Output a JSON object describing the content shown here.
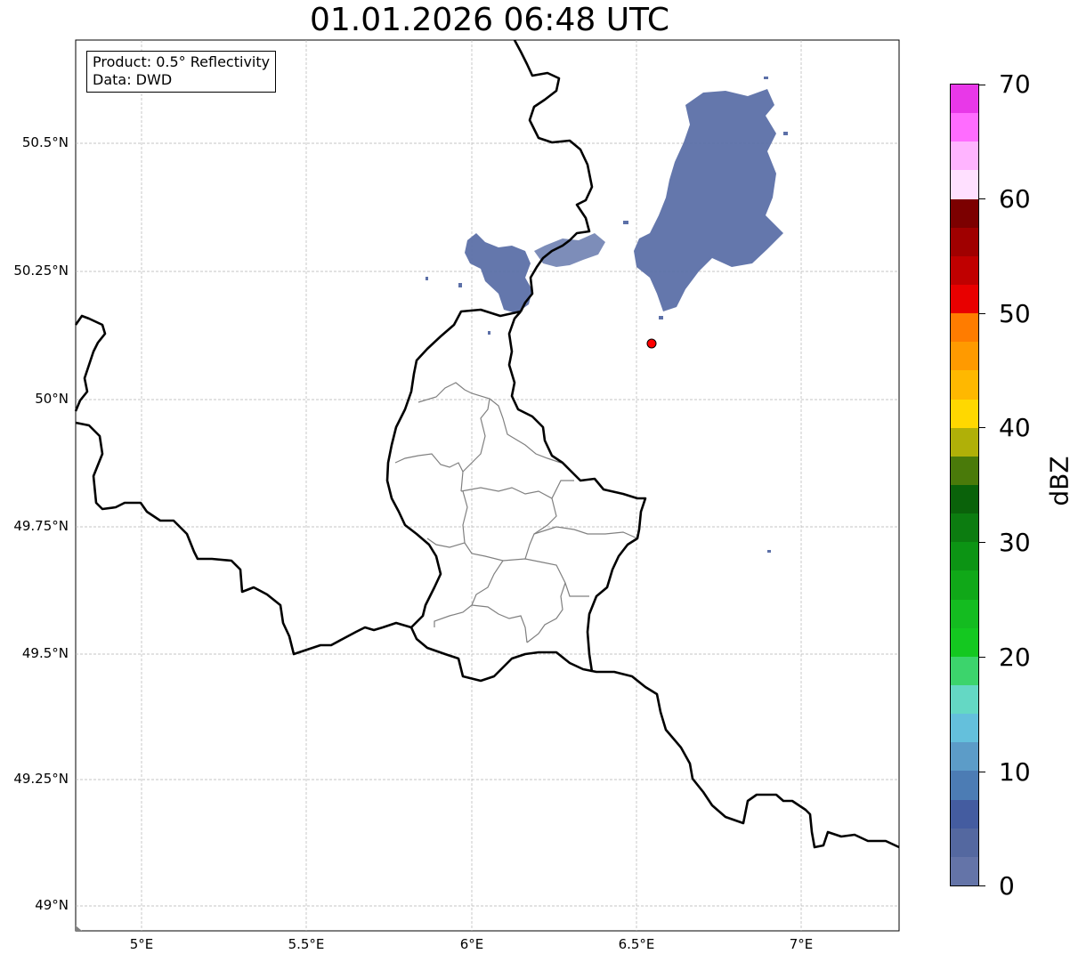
{
  "title": "01.01.2026 06:48 UTC",
  "infobox": {
    "product": "Product: 0.5° Reflectivity",
    "data": "Data: DWD"
  },
  "latitude_labels": [
    "50.5°N",
    "50.25°N",
    "50°N",
    "49.75°N",
    "49.5°N",
    "49.25°N",
    "49°N"
  ],
  "longitude_labels": [
    "5°E",
    "5.5°E",
    "6°E",
    "6.5°E",
    "7°E"
  ],
  "colorbar": {
    "label": "dBZ",
    "ticks": [
      "0",
      "10",
      "20",
      "30",
      "40",
      "50",
      "60",
      "70"
    ],
    "colors": [
      "#6474a8",
      "#5468a0",
      "#445ca0",
      "#4c7cb4",
      "#5c9cc8",
      "#64c0dc",
      "#64d8c4",
      "#3cd46c",
      "#14c820",
      "#14bc20",
      "#10a818",
      "#0c9414",
      "#0c7c10",
      "#0a620a",
      "#4a7a0a",
      "#b0b008",
      "#ffd800",
      "#ffb800",
      "#ff9a00",
      "#ff7c00",
      "#e80000",
      "#c00000",
      "#a00000",
      "#7c0000",
      "#ffe0ff",
      "#ffb4ff",
      "#ff6cff",
      "#e838e8"
    ]
  },
  "marker": {
    "color": "#ff0000",
    "lon": 6.55,
    "lat": 50.11
  },
  "colors": {
    "border": "#000000",
    "district": "#808080",
    "grid": "#b0b0b0",
    "echo": "#5c70a8"
  }
}
